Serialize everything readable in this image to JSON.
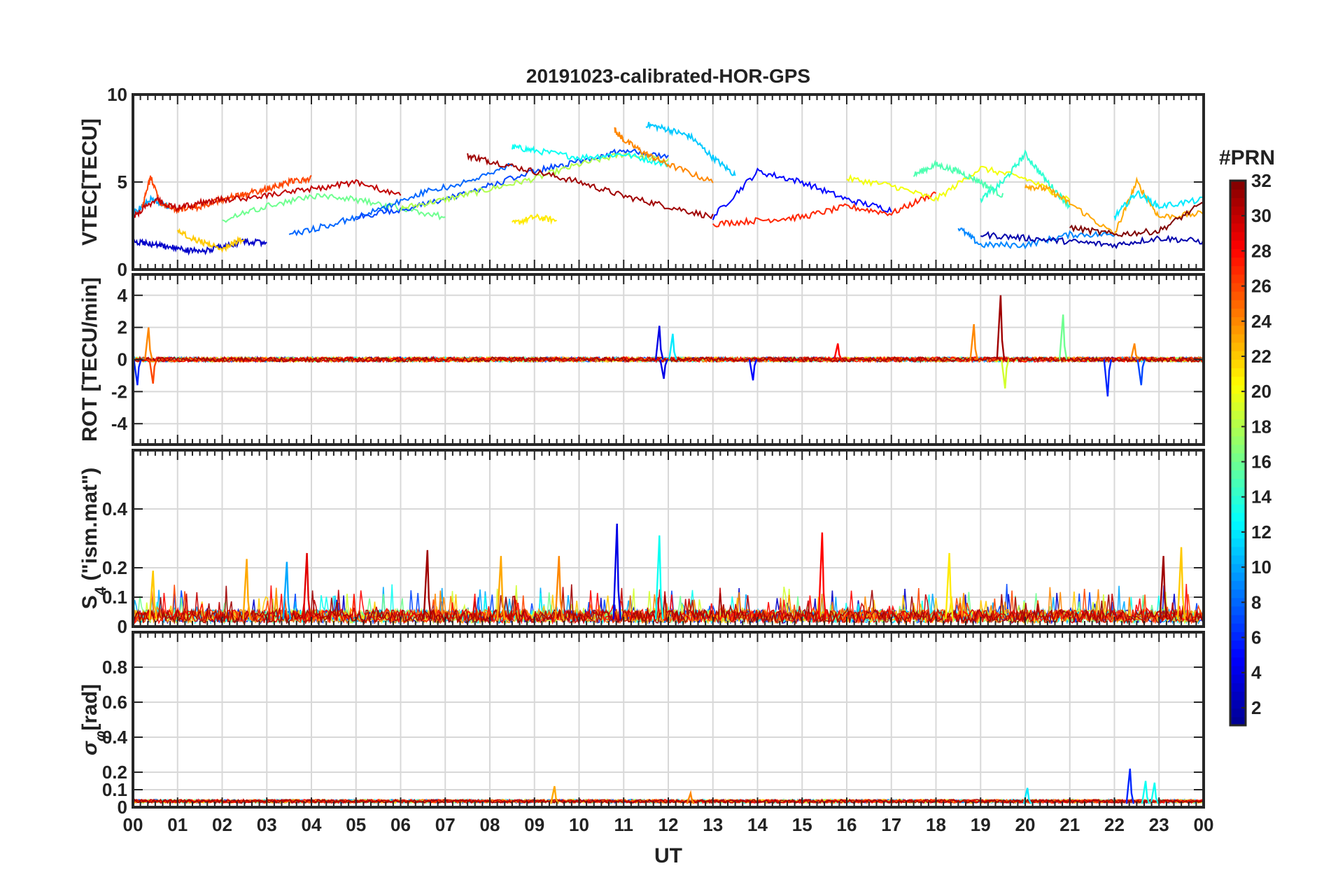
{
  "title": "20191023-calibrated-HOR-GPS",
  "xlabel": "UT",
  "x_tick_labels": [
    "00",
    "01",
    "02",
    "03",
    "04",
    "05",
    "06",
    "07",
    "08",
    "09",
    "10",
    "11",
    "12",
    "13",
    "14",
    "15",
    "16",
    "17",
    "18",
    "19",
    "20",
    "21",
    "22",
    "23",
    "00"
  ],
  "colorbar": {
    "title": "#PRN",
    "min": 1,
    "max": 32,
    "tick_values": [
      2,
      4,
      6,
      8,
      10,
      12,
      14,
      16,
      18,
      20,
      22,
      24,
      26,
      28,
      30,
      32
    ],
    "tick_labels": [
      "2",
      "4",
      "6",
      "8",
      "10",
      "12",
      "14",
      "16",
      "18",
      "20",
      "22",
      "24",
      "26",
      "28",
      "30",
      "32"
    ],
    "colormap": "jet",
    "colors": [
      "#00008f",
      "#0000ff",
      "#007fff",
      "#00ffff",
      "#7fff7f",
      "#ffff00",
      "#ff7f00",
      "#ff0000",
      "#7f0000"
    ]
  },
  "chart_data": [
    {
      "type": "line",
      "panel": "vtec",
      "ylabel": "VTEC[TECU]",
      "xlim": [
        0,
        24
      ],
      "ylim": [
        0,
        10
      ],
      "yticks": [
        0,
        5,
        10
      ],
      "ytick_labels": [
        "0",
        "5",
        "10"
      ],
      "grid": true,
      "series_note": "one trace per GPS PRN (1-32), coloured by PRN",
      "series": [
        {
          "prn": 3,
          "x": [
            0.0,
            0.5,
            1.0,
            1.5,
            2.0,
            2.5,
            3.0
          ],
          "y": [
            1.6,
            1.4,
            1.2,
            1.0,
            1.3,
            1.6,
            1.5
          ]
        },
        {
          "prn": 10,
          "x": [
            0.0,
            0.4,
            0.8
          ],
          "y": [
            3.2,
            4.0,
            3.6
          ]
        },
        {
          "prn": 26,
          "x": [
            0.2,
            0.4,
            0.6,
            1.0,
            1.5,
            2.0,
            2.5,
            3.0,
            3.5,
            4.0
          ],
          "y": [
            3.5,
            5.3,
            3.8,
            3.4,
            3.6,
            4.0,
            4.3,
            4.6,
            5.0,
            5.2
          ]
        },
        {
          "prn": 30,
          "x": [
            0.0,
            0.5,
            1.0,
            1.5,
            2.0,
            3.0,
            4.0,
            5.0,
            6.0
          ],
          "y": [
            3.0,
            4.0,
            3.5,
            3.8,
            4.0,
            4.2,
            4.6,
            5.0,
            4.2
          ]
        },
        {
          "prn": 16,
          "x": [
            2.0,
            3.0,
            4.0,
            5.0,
            6.0,
            7.0
          ],
          "y": [
            2.8,
            3.6,
            4.2,
            4.0,
            3.5,
            3.0
          ]
        },
        {
          "prn": 8,
          "x": [
            3.5,
            4.5,
            5.5,
            6.5,
            7.5,
            8.5
          ],
          "y": [
            2.0,
            2.6,
            3.4,
            4.4,
            5.0,
            6.0
          ]
        },
        {
          "prn": 22,
          "x": [
            1.0,
            1.5,
            2.0,
            2.5
          ],
          "y": [
            2.2,
            1.6,
            1.2,
            1.8
          ]
        },
        {
          "prn": 7,
          "x": [
            5.0,
            6.0,
            7.0,
            8.0,
            9.0,
            10.0,
            11.0,
            12.0
          ],
          "y": [
            3.0,
            3.4,
            4.0,
            4.8,
            5.6,
            6.2,
            6.8,
            6.4
          ]
        },
        {
          "prn": 18,
          "x": [
            6.0,
            7.0,
            8.0,
            9.0,
            10.0,
            11.0,
            12.0
          ],
          "y": [
            3.5,
            4.0,
            4.6,
            5.2,
            6.0,
            6.6,
            6.2
          ]
        },
        {
          "prn": 13,
          "x": [
            8.5,
            9.0,
            10.0,
            11.0,
            12.0
          ],
          "y": [
            7.0,
            6.8,
            6.4,
            6.6,
            6.0
          ]
        },
        {
          "prn": 31,
          "x": [
            7.5,
            8.0,
            9.0,
            10.0,
            11.0,
            12.0,
            13.0
          ],
          "y": [
            6.5,
            6.2,
            5.6,
            5.0,
            4.2,
            3.6,
            3.0
          ]
        },
        {
          "prn": 21,
          "x": [
            8.5,
            9.0,
            9.5
          ],
          "y": [
            2.6,
            3.0,
            2.8
          ]
        },
        {
          "prn": 11,
          "x": [
            11.5,
            12.0,
            12.5,
            13.0,
            13.5
          ],
          "y": [
            8.3,
            8.0,
            7.6,
            6.4,
            5.4
          ]
        },
        {
          "prn": 24,
          "x": [
            10.8,
            11.0,
            11.5,
            12.0,
            13.0
          ],
          "y": [
            8.0,
            7.4,
            6.6,
            6.0,
            5.0
          ]
        },
        {
          "prn": 5,
          "x": [
            13.0,
            14.0,
            15.0,
            16.0,
            17.0
          ],
          "y": [
            3.0,
            5.6,
            5.0,
            4.0,
            3.4
          ]
        },
        {
          "prn": 27,
          "x": [
            13.0,
            14.0,
            15.0,
            16.0,
            17.0,
            18.0
          ],
          "y": [
            2.6,
            2.8,
            3.0,
            3.6,
            3.2,
            4.4
          ]
        },
        {
          "prn": 20,
          "x": [
            16.0,
            17.0,
            18.0,
            19.0,
            20.0,
            21.0
          ],
          "y": [
            5.2,
            4.8,
            4.0,
            5.8,
            5.2,
            4.0
          ]
        },
        {
          "prn": 15,
          "x": [
            17.5,
            18.0,
            18.5,
            19.0,
            19.5
          ],
          "y": [
            5.4,
            6.0,
            5.6,
            5.0,
            4.2
          ]
        },
        {
          "prn": 14,
          "x": [
            19.0,
            19.5,
            20.0,
            20.5,
            21.0
          ],
          "y": [
            4.0,
            5.0,
            6.6,
            5.0,
            3.6
          ]
        },
        {
          "prn": 9,
          "x": [
            18.5,
            19.0,
            20.0,
            21.0,
            22.0
          ],
          "y": [
            2.4,
            1.4,
            1.4,
            2.0,
            2.0
          ]
        },
        {
          "prn": 23,
          "x": [
            20.0,
            20.5,
            21.0,
            22.0,
            22.5,
            23.0,
            24.0
          ],
          "y": [
            4.8,
            4.6,
            3.8,
            2.0,
            5.0,
            3.0,
            3.2
          ]
        },
        {
          "prn": 2,
          "x": [
            19.0,
            20.0,
            21.0,
            22.0,
            23.0,
            24.0
          ],
          "y": [
            2.0,
            1.8,
            1.6,
            1.4,
            1.8,
            1.6
          ]
        },
        {
          "prn": 32,
          "x": [
            21.0,
            22.0,
            23.0,
            24.0
          ],
          "y": [
            2.4,
            2.0,
            2.2,
            3.8
          ]
        },
        {
          "prn": 12,
          "x": [
            22.0,
            22.5,
            23.0,
            24.0
          ],
          "y": [
            3.0,
            4.4,
            3.6,
            4.0
          ]
        }
      ]
    },
    {
      "type": "line",
      "panel": "rot",
      "ylabel": "ROT [TECU/min]",
      "xlim": [
        0,
        24
      ],
      "ylim": [
        -5.3,
        5.3
      ],
      "yticks": [
        -4,
        -2,
        0,
        2,
        4
      ],
      "ytick_labels": [
        "-4",
        "-2",
        "0",
        "2",
        "4"
      ],
      "grid": true,
      "baseline_noise_amplitude": 0.15,
      "spikes": [
        {
          "x": 0.1,
          "y": -1.6,
          "prn": 6
        },
        {
          "x": 0.35,
          "y": 2.0,
          "prn": 24
        },
        {
          "x": 0.45,
          "y": -1.5,
          "prn": 26
        },
        {
          "x": 11.8,
          "y": 2.1,
          "prn": 4
        },
        {
          "x": 11.9,
          "y": -1.2,
          "prn": 4
        },
        {
          "x": 12.1,
          "y": 1.6,
          "prn": 12
        },
        {
          "x": 13.9,
          "y": -1.3,
          "prn": 5
        },
        {
          "x": 15.8,
          "y": 1.0,
          "prn": 28
        },
        {
          "x": 18.85,
          "y": 2.2,
          "prn": 24
        },
        {
          "x": 19.45,
          "y": 4.0,
          "prn": 31
        },
        {
          "x": 19.55,
          "y": -1.8,
          "prn": 19
        },
        {
          "x": 20.85,
          "y": 2.8,
          "prn": 16
        },
        {
          "x": 21.85,
          "y": -2.3,
          "prn": 6
        },
        {
          "x": 22.45,
          "y": 1.0,
          "prn": 24
        },
        {
          "x": 22.6,
          "y": -1.6,
          "prn": 7
        }
      ]
    },
    {
      "type": "line",
      "panel": "s4",
      "ylabel": "S4 (\"ism.mat\")",
      "ylabel_main": "S",
      "ylabel_sub": "4",
      "ylabel_rest": " (\"ism.mat\")",
      "xlim": [
        0,
        24
      ],
      "ylim": [
        0,
        0.6
      ],
      "yticks": [
        0,
        0.1,
        0.2,
        0.4
      ],
      "ytick_labels": [
        "0",
        "0.1",
        "0.2",
        "0.4"
      ],
      "grid": true,
      "baseline_level": 0.05,
      "spikes": [
        {
          "x": 0.45,
          "y": 0.19,
          "prn": 22
        },
        {
          "x": 2.55,
          "y": 0.23,
          "prn": 23
        },
        {
          "x": 3.45,
          "y": 0.22,
          "prn": 10
        },
        {
          "x": 3.9,
          "y": 0.25,
          "prn": 29
        },
        {
          "x": 6.6,
          "y": 0.26,
          "prn": 31
        },
        {
          "x": 8.25,
          "y": 0.24,
          "prn": 23
        },
        {
          "x": 9.55,
          "y": 0.24,
          "prn": 24
        },
        {
          "x": 10.85,
          "y": 0.35,
          "prn": 4
        },
        {
          "x": 11.8,
          "y": 0.31,
          "prn": 13
        },
        {
          "x": 15.45,
          "y": 0.32,
          "prn": 28
        },
        {
          "x": 18.3,
          "y": 0.25,
          "prn": 21
        },
        {
          "x": 23.1,
          "y": 0.24,
          "prn": 31
        },
        {
          "x": 23.5,
          "y": 0.27,
          "prn": 22
        }
      ]
    },
    {
      "type": "line",
      "panel": "sigma_phi",
      "ylabel": "σφ[rad]",
      "ylabel_main": "σ",
      "ylabel_sub": "φ",
      "ylabel_rest": "[rad]",
      "xlim": [
        0,
        24
      ],
      "ylim": [
        0,
        1.0
      ],
      "yticks": [
        0,
        0.1,
        0.2,
        0.4,
        0.6,
        0.8
      ],
      "ytick_labels": [
        "0",
        "0.1",
        "0.2",
        "0.4",
        "0.6",
        "0.8"
      ],
      "grid": true,
      "baseline_level": 0.04,
      "spikes": [
        {
          "x": 9.45,
          "y": 0.12,
          "prn": 23
        },
        {
          "x": 12.5,
          "y": 0.08,
          "prn": 24
        },
        {
          "x": 20.05,
          "y": 0.11,
          "prn": 12
        },
        {
          "x": 22.35,
          "y": 0.22,
          "prn": 6
        },
        {
          "x": 22.7,
          "y": 0.15,
          "prn": 13
        },
        {
          "x": 22.9,
          "y": 0.14,
          "prn": 13
        }
      ]
    }
  ]
}
